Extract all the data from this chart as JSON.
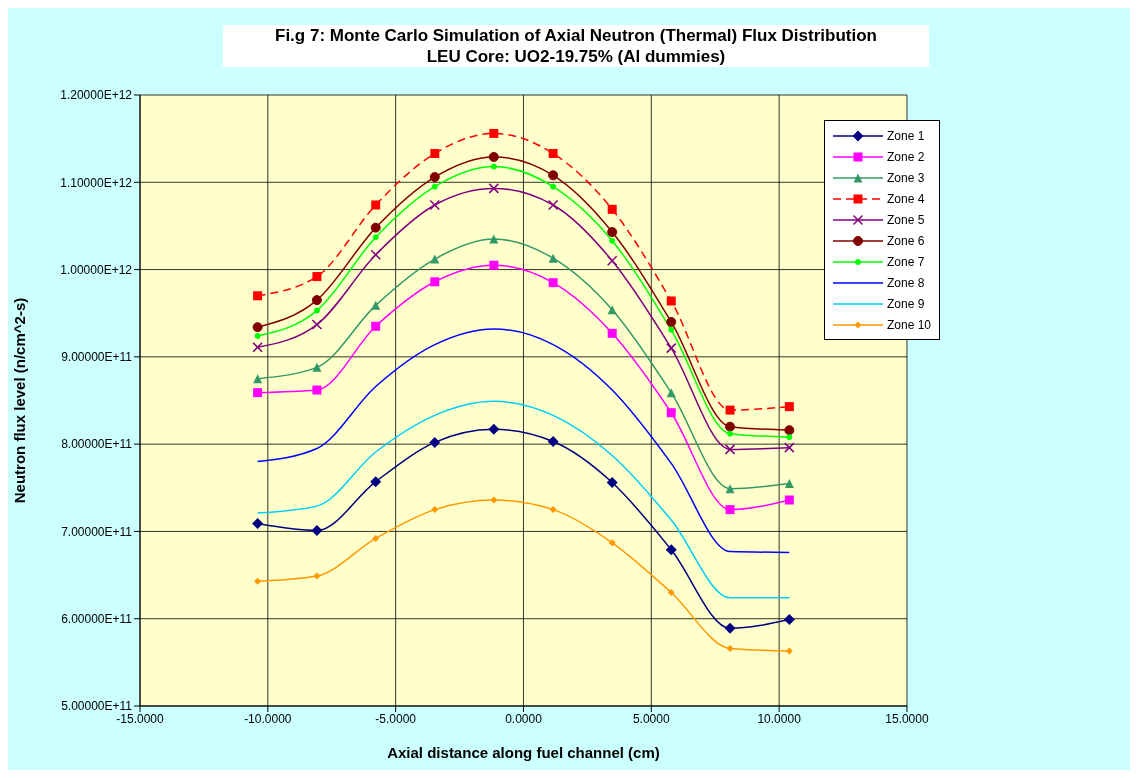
{
  "chart_data": {
    "type": "line",
    "title": "Fi.g 7: Monte Carlo Simulation of Axial Neutron (Thermal) Flux Distribution",
    "subtitle": "LEU Core: UO2-19.75% (Al dummies)",
    "xlabel": "Axial distance along fuel channel (cm)",
    "ylabel": "Neutron flux level (n/cm^2-s)",
    "x": [
      -10.4,
      -8.08,
      -5.78,
      -3.47,
      -1.16,
      1.16,
      3.47,
      5.78,
      8.08,
      10.4
    ],
    "series": [
      {
        "name": "Zone 1",
        "color": "#000080",
        "marker": "diamond",
        "values": [
          709000000000,
          701000000000,
          757000000000,
          802000000000,
          817000000000,
          803000000000,
          756000000000,
          679000000000,
          589000000000,
          599000000000
        ]
      },
      {
        "name": "Zone 2",
        "color": "#ff00ff",
        "marker": "square",
        "values": [
          859000000000,
          862000000000,
          935000000000,
          986000000000,
          1005000000000,
          985000000000,
          927000000000,
          836000000000,
          725000000000,
          736000000000
        ]
      },
      {
        "name": "Zone 3",
        "color": "#339966",
        "marker": "triangle",
        "values": [
          875000000000,
          888000000000,
          959000000000,
          1012000000000,
          1035000000000,
          1013000000000,
          954000000000,
          859000000000,
          749000000000,
          755000000000
        ]
      },
      {
        "name": "Zone 4",
        "color": "#ff0000",
        "marker": "square",
        "line_style": "dashed",
        "values": [
          970000000000,
          992000000000,
          1074000000000,
          1133000000000,
          1156000000000,
          1133000000000,
          1069000000000,
          964000000000,
          839000000000,
          843000000000
        ]
      },
      {
        "name": "Zone 5",
        "color": "#800080",
        "marker": "cross",
        "values": [
          911000000000,
          937000000000,
          1017000000000,
          1074000000000,
          1093000000000,
          1074000000000,
          1010000000000,
          910000000000,
          794000000000,
          796000000000
        ]
      },
      {
        "name": "Zone 6",
        "color": "#800000",
        "marker": "circle",
        "values": [
          934000000000,
          965000000000,
          1048000000000,
          1106000000000,
          1129000000000,
          1108000000000,
          1043000000000,
          940000000000,
          820000000000,
          816000000000
        ]
      },
      {
        "name": "Zone 7",
        "color": "#00ff00",
        "marker": "circle",
        "values": [
          924000000000,
          953000000000,
          1037000000000,
          1095000000000,
          1118000000000,
          1095000000000,
          1033000000000,
          931000000000,
          812000000000,
          808000000000
        ]
      },
      {
        "name": "Zone 8",
        "color": "#0000ff",
        "marker": "none",
        "values": [
          780000000000,
          795000000000,
          866000000000,
          914000000000,
          932000000000,
          914000000000,
          862000000000,
          778000000000,
          677000000000,
          676000000000
        ]
      },
      {
        "name": "Zone 9",
        "color": "#00ccff",
        "marker": "none",
        "values": [
          721000000000,
          729000000000,
          791000000000,
          833000000000,
          849000000000,
          833000000000,
          787000000000,
          713000000000,
          624000000000,
          624000000000
        ]
      },
      {
        "name": "Zone 10",
        "color": "#ff9900",
        "marker": "diamond",
        "values": [
          643000000000,
          649000000000,
          692000000000,
          725000000000,
          736000000000,
          725000000000,
          687000000000,
          630000000000,
          566000000000,
          563000000000
        ]
      }
    ],
    "xlim": [
      -15,
      15
    ],
    "xticks": [
      {
        "value": -15,
        "label": "-15.0000"
      },
      {
        "value": -10,
        "label": "-10.0000"
      },
      {
        "value": -5,
        "label": "-5.0000"
      },
      {
        "value": 0,
        "label": "0.0000"
      },
      {
        "value": 5,
        "label": "5.0000"
      },
      {
        "value": 10,
        "label": "10.0000"
      },
      {
        "value": 15,
        "label": "15.0000"
      }
    ],
    "ylim": [
      500000000000,
      1200000000000
    ],
    "yticks": [
      {
        "value": 500000000000,
        "label": "5.00000E+11"
      },
      {
        "value": 600000000000,
        "label": "6.00000E+11"
      },
      {
        "value": 700000000000,
        "label": "7.00000E+11"
      },
      {
        "value": 800000000000,
        "label": "8.00000E+11"
      },
      {
        "value": 900000000000,
        "label": "9.00000E+11"
      },
      {
        "value": 1000000000000,
        "label": "1.00000E+12"
      },
      {
        "value": 1100000000000,
        "label": "1.10000E+12"
      },
      {
        "value": 1200000000000,
        "label": "1.20000E+12"
      }
    ],
    "grid": true,
    "legend": "top right"
  }
}
